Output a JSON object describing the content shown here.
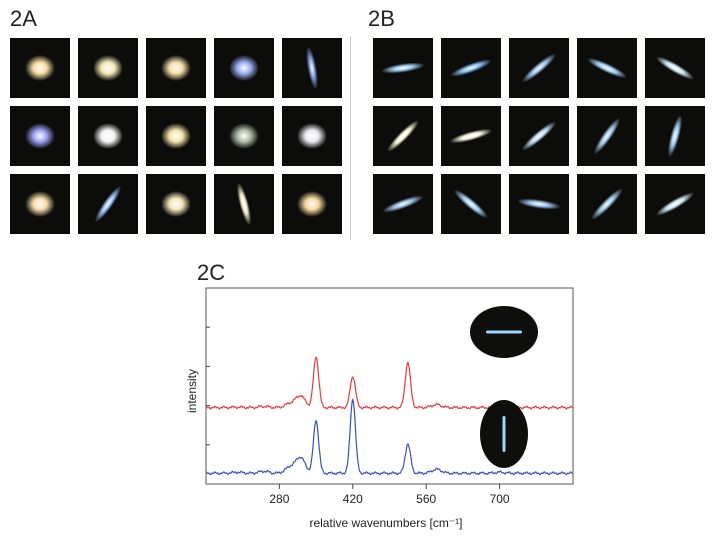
{
  "panels": {
    "a_label": "2A",
    "b_label": "2B",
    "c_label": "2C"
  },
  "grid_a_particles": [
    {
      "shape": "blob",
      "color": "#ffe9a8"
    },
    {
      "shape": "blob",
      "color": "#fff4c0"
    },
    {
      "shape": "blob",
      "color": "#ffe8b0"
    },
    {
      "shape": "blob",
      "color": "#9fb7ff"
    },
    {
      "shape": "rod",
      "color": "#8aa8e8",
      "angle": 80
    },
    {
      "shape": "blob",
      "color": "#a6a8ff"
    },
    {
      "shape": "blob",
      "color": "#ffffff"
    },
    {
      "shape": "blob",
      "color": "#fff0b0"
    },
    {
      "shape": "blob",
      "color": "#b6c8b0"
    },
    {
      "shape": "blob",
      "color": "#f6f4ff"
    },
    {
      "shape": "blob",
      "color": "#ffe6b0"
    },
    {
      "shape": "rod",
      "color": "#9fc8ff",
      "angle": -55
    },
    {
      "shape": "blob",
      "color": "#ffeec0"
    },
    {
      "shape": "rod",
      "color": "#fff8d8",
      "angle": 75
    },
    {
      "shape": "blob",
      "color": "#ffe0a0"
    }
  ],
  "grid_b_particles": [
    {
      "shape": "rod",
      "color": "#9fd4ff",
      "angle": -8
    },
    {
      "shape": "rod",
      "color": "#8ec8ff",
      "angle": -20
    },
    {
      "shape": "rod",
      "color": "#a0c8f0",
      "angle": -40
    },
    {
      "shape": "rod",
      "color": "#a8d8ff",
      "angle": 25
    },
    {
      "shape": "rod",
      "color": "#d8f0ff",
      "angle": 30
    },
    {
      "shape": "rod",
      "color": "#ffffe0",
      "angle": -45
    },
    {
      "shape": "rod",
      "color": "#ffffe8",
      "angle": -15
    },
    {
      "shape": "rod",
      "color": "#c8e4ff",
      "angle": -40
    },
    {
      "shape": "rod",
      "color": "#a8d0f8",
      "angle": -55
    },
    {
      "shape": "rod",
      "color": "#a8d4ff",
      "angle": -75
    },
    {
      "shape": "rod",
      "color": "#9fc8f0",
      "angle": -20
    },
    {
      "shape": "rod",
      "color": "#a8d8ff",
      "angle": 40
    },
    {
      "shape": "rod",
      "color": "#a0c8f8",
      "angle": 8
    },
    {
      "shape": "rod",
      "color": "#9fd0f0",
      "angle": -45
    },
    {
      "shape": "rod",
      "color": "#d8f0ff",
      "angle": -30
    }
  ],
  "chart_data": {
    "type": "line",
    "xlabel": "relative wavenumbers [cm⁻¹]",
    "ylabel": "intensity",
    "xlim": [
      140,
      840
    ],
    "x_ticks": [
      280,
      420,
      560,
      700
    ],
    "ylim": [
      0,
      1
    ],
    "series": [
      {
        "color": "#e83a3a",
        "baseline": 0.39,
        "peaks": [
          [
            200,
            0.002
          ],
          [
            250,
            0.006
          ],
          [
            300,
            0.02
          ],
          [
            320,
            0.06
          ],
          [
            350,
            0.26
          ],
          [
            420,
            0.16
          ],
          [
            525,
            0.23
          ],
          [
            580,
            0.015
          ],
          [
            700,
            0.005
          ]
        ],
        "inset_particle_angle": 0
      },
      {
        "color": "#3a50b8",
        "baseline": 0.055,
        "peaks": [
          [
            200,
            0.005
          ],
          [
            250,
            0.01
          ],
          [
            300,
            0.03
          ],
          [
            320,
            0.08
          ],
          [
            350,
            0.27
          ],
          [
            420,
            0.38
          ],
          [
            525,
            0.15
          ],
          [
            580,
            0.02
          ],
          [
            700,
            0.005
          ]
        ],
        "inset_particle_angle": 90
      }
    ]
  }
}
